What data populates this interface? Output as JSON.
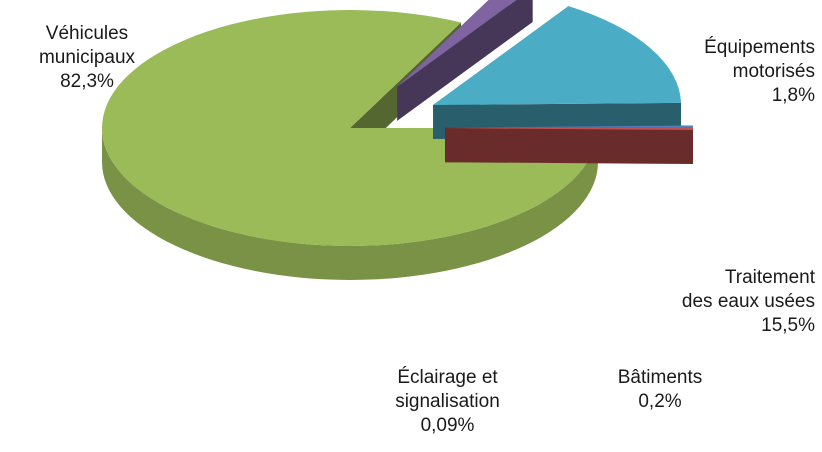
{
  "chart_data": {
    "type": "pie",
    "style": "3d-exploded",
    "slices": [
      {
        "label_lines": [
          "Véhicules",
          "municipaux"
        ],
        "value_text": "82,3%",
        "value": 82.3,
        "color": "#9bbb59"
      },
      {
        "label_lines": [
          "Équipements",
          "motorisés"
        ],
        "value_text": "1,8%",
        "value": 1.8,
        "color": "#8064a2"
      },
      {
        "label_lines": [
          "Traitement",
          "des eaux usées"
        ],
        "value_text": "15,5%",
        "value": 15.5,
        "color": "#4bacc6"
      },
      {
        "label_lines": [
          "Bâtiments"
        ],
        "value_text": "0,2%",
        "value": 0.2,
        "color": "#4f81bd"
      },
      {
        "label_lines": [
          "Éclairage et",
          "signalisation"
        ],
        "value_text": "0,09%",
        "value": 0.09,
        "color": "#c0504d"
      }
    ]
  }
}
